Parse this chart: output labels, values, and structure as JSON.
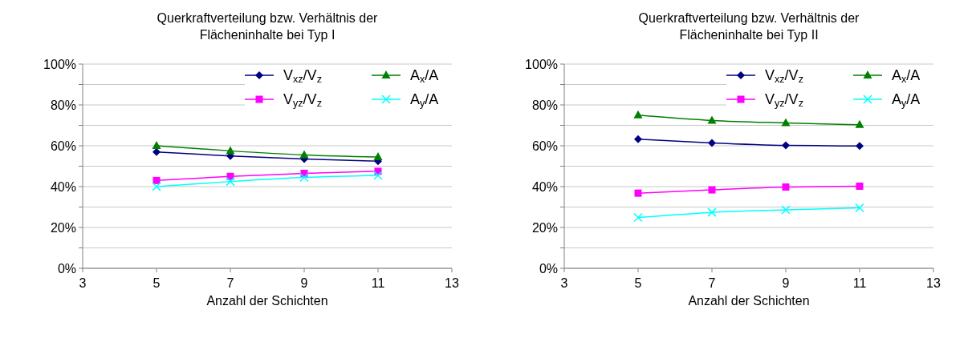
{
  "chart_data": [
    {
      "type": "line",
      "title": "Querkraftverteilung bzw. Verhältnis der Flächeninhalte bei Typ I",
      "xlabel": "Anzahl der Schichten",
      "x": [
        5,
        7,
        9,
        11
      ],
      "xlim": [
        3,
        13
      ],
      "xticks": [
        3,
        5,
        7,
        9,
        11,
        13
      ],
      "ylim": [
        0,
        100
      ],
      "yticks": [
        {
          "value": 0,
          "label": "0%"
        },
        {
          "value": 10,
          "label": null
        },
        {
          "value": 20,
          "label": "20%"
        },
        {
          "value": 30,
          "label": null
        },
        {
          "value": 40,
          "label": "40%"
        },
        {
          "value": 50,
          "label": null
        },
        {
          "value": 60,
          "label": "60%"
        },
        {
          "value": 70,
          "label": null
        },
        {
          "value": 80,
          "label": "80%"
        },
        {
          "value": 90,
          "label": null
        },
        {
          "value": 100,
          "label": "100%"
        }
      ],
      "grid": "y",
      "legend": "top right",
      "line_style": "solid",
      "series": [
        {
          "name": "V$_{xz}$/V$_{z}$",
          "color": "#000080",
          "marker": "diamond",
          "values": [
            57,
            55,
            53.5,
            52.5
          ]
        },
        {
          "name": "V$_{yz}$/V$_{z}$",
          "color": "#ff00ff",
          "marker": "square",
          "values": [
            43,
            45,
            46.5,
            47.5
          ]
        },
        {
          "name": "A$_{x}$/A",
          "color": "#008000",
          "marker": "triangle",
          "values": [
            60,
            57.5,
            55.5,
            54.5
          ]
        },
        {
          "name": "A$_{y}$/A",
          "color": "#00ffff",
          "marker": "cross",
          "values": [
            40,
            42.5,
            44.5,
            45.5
          ]
        }
      ]
    },
    {
      "type": "line",
      "title": "Querkraftverteilung bzw. Verhältnis der Flächeninhalte bei Typ II",
      "xlabel": "Anzahl der Schichten",
      "x": [
        5,
        7,
        9,
        11
      ],
      "xlim": [
        3,
        13
      ],
      "xticks": [
        3,
        5,
        7,
        9,
        11,
        13
      ],
      "ylim": [
        0,
        100
      ],
      "yticks": [
        {
          "value": 0,
          "label": "0%"
        },
        {
          "value": 10,
          "label": null
        },
        {
          "value": 20,
          "label": "20%"
        },
        {
          "value": 30,
          "label": null
        },
        {
          "value": 40,
          "label": "40%"
        },
        {
          "value": 50,
          "label": null
        },
        {
          "value": 60,
          "label": "60%"
        },
        {
          "value": 70,
          "label": null
        },
        {
          "value": 80,
          "label": "80%"
        },
        {
          "value": 90,
          "label": null
        },
        {
          "value": 100,
          "label": "100%"
        }
      ],
      "grid": "y",
      "legend": "top right",
      "line_style": "solid",
      "series": [
        {
          "name": "V$_{xz}$/V$_{z}$",
          "color": "#000080",
          "marker": "diamond",
          "values": [
            63.2,
            61.4,
            60.2,
            59.9
          ]
        },
        {
          "name": "V$_{yz}$/V$_{z}$",
          "color": "#ff00ff",
          "marker": "square",
          "values": [
            36.8,
            38.4,
            39.8,
            40.2
          ]
        },
        {
          "name": "A$_{x}$/A",
          "color": "#008000",
          "marker": "triangle",
          "values": [
            75,
            72.4,
            71.2,
            70.3
          ]
        },
        {
          "name": "A$_{y}$/A",
          "color": "#00ffff",
          "marker": "cross",
          "values": [
            24.9,
            27.4,
            28.6,
            29.6
          ]
        }
      ]
    }
  ]
}
